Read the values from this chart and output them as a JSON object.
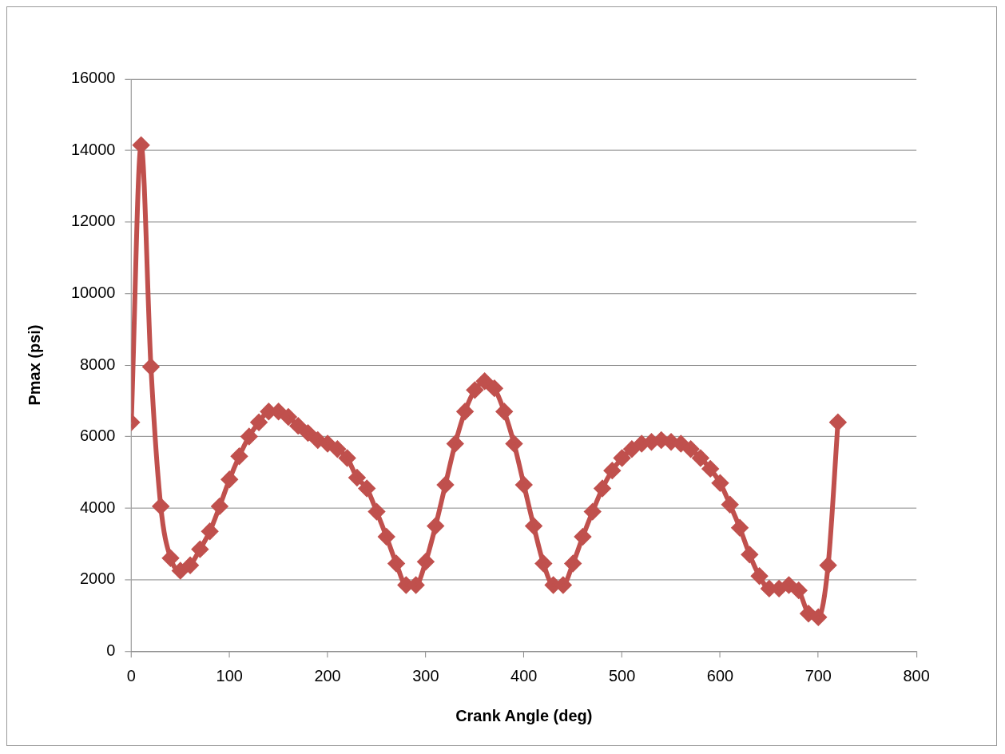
{
  "chart_data": {
    "type": "line",
    "xlabel": "Crank Angle (deg)",
    "ylabel": "Pmax (psi)",
    "x": [
      0,
      10,
      20,
      30,
      40,
      50,
      60,
      70,
      80,
      90,
      100,
      110,
      120,
      130,
      140,
      150,
      160,
      170,
      180,
      190,
      200,
      210,
      220,
      230,
      240,
      250,
      260,
      270,
      280,
      290,
      300,
      310,
      320,
      330,
      340,
      350,
      360,
      370,
      380,
      390,
      400,
      410,
      420,
      430,
      440,
      450,
      460,
      470,
      480,
      490,
      500,
      510,
      520,
      530,
      540,
      550,
      560,
      570,
      580,
      590,
      600,
      610,
      620,
      630,
      640,
      650,
      660,
      670,
      680,
      690,
      700,
      710,
      720
    ],
    "series": [
      {
        "color": "#c0504d",
        "values": [
          6400,
          14150,
          7950,
          4050,
          2600,
          2250,
          2400,
          2850,
          3350,
          4050,
          4800,
          5450,
          6000,
          6400,
          6700,
          6700,
          6550,
          6300,
          6100,
          5900,
          5800,
          5650,
          5400,
          4850,
          4550,
          3900,
          3200,
          2450,
          1850,
          1850,
          2500,
          3500,
          4650,
          5800,
          6700,
          7300,
          7550,
          7350,
          6700,
          5800,
          4650,
          3500,
          2450,
          1850,
          1850,
          2450,
          3200,
          3900,
          4550,
          5050,
          5400,
          5650,
          5800,
          5850,
          5900,
          5850,
          5800,
          5650,
          5400,
          5100,
          4700,
          4100,
          3450,
          2700,
          2100,
          1750,
          1750,
          1850,
          1700,
          1050,
          950,
          2400,
          6400
        ]
      }
    ],
    "xlim": [
      0,
      800
    ],
    "xticks": [
      0,
      100,
      200,
      300,
      400,
      500,
      600,
      700,
      800
    ],
    "ylim": [
      0,
      16000
    ],
    "yticks": [
      0,
      2000,
      4000,
      6000,
      8000,
      10000,
      12000,
      14000,
      16000
    ],
    "grid": "y",
    "legend": false,
    "marker": "diamond",
    "line_style": "solid"
  }
}
